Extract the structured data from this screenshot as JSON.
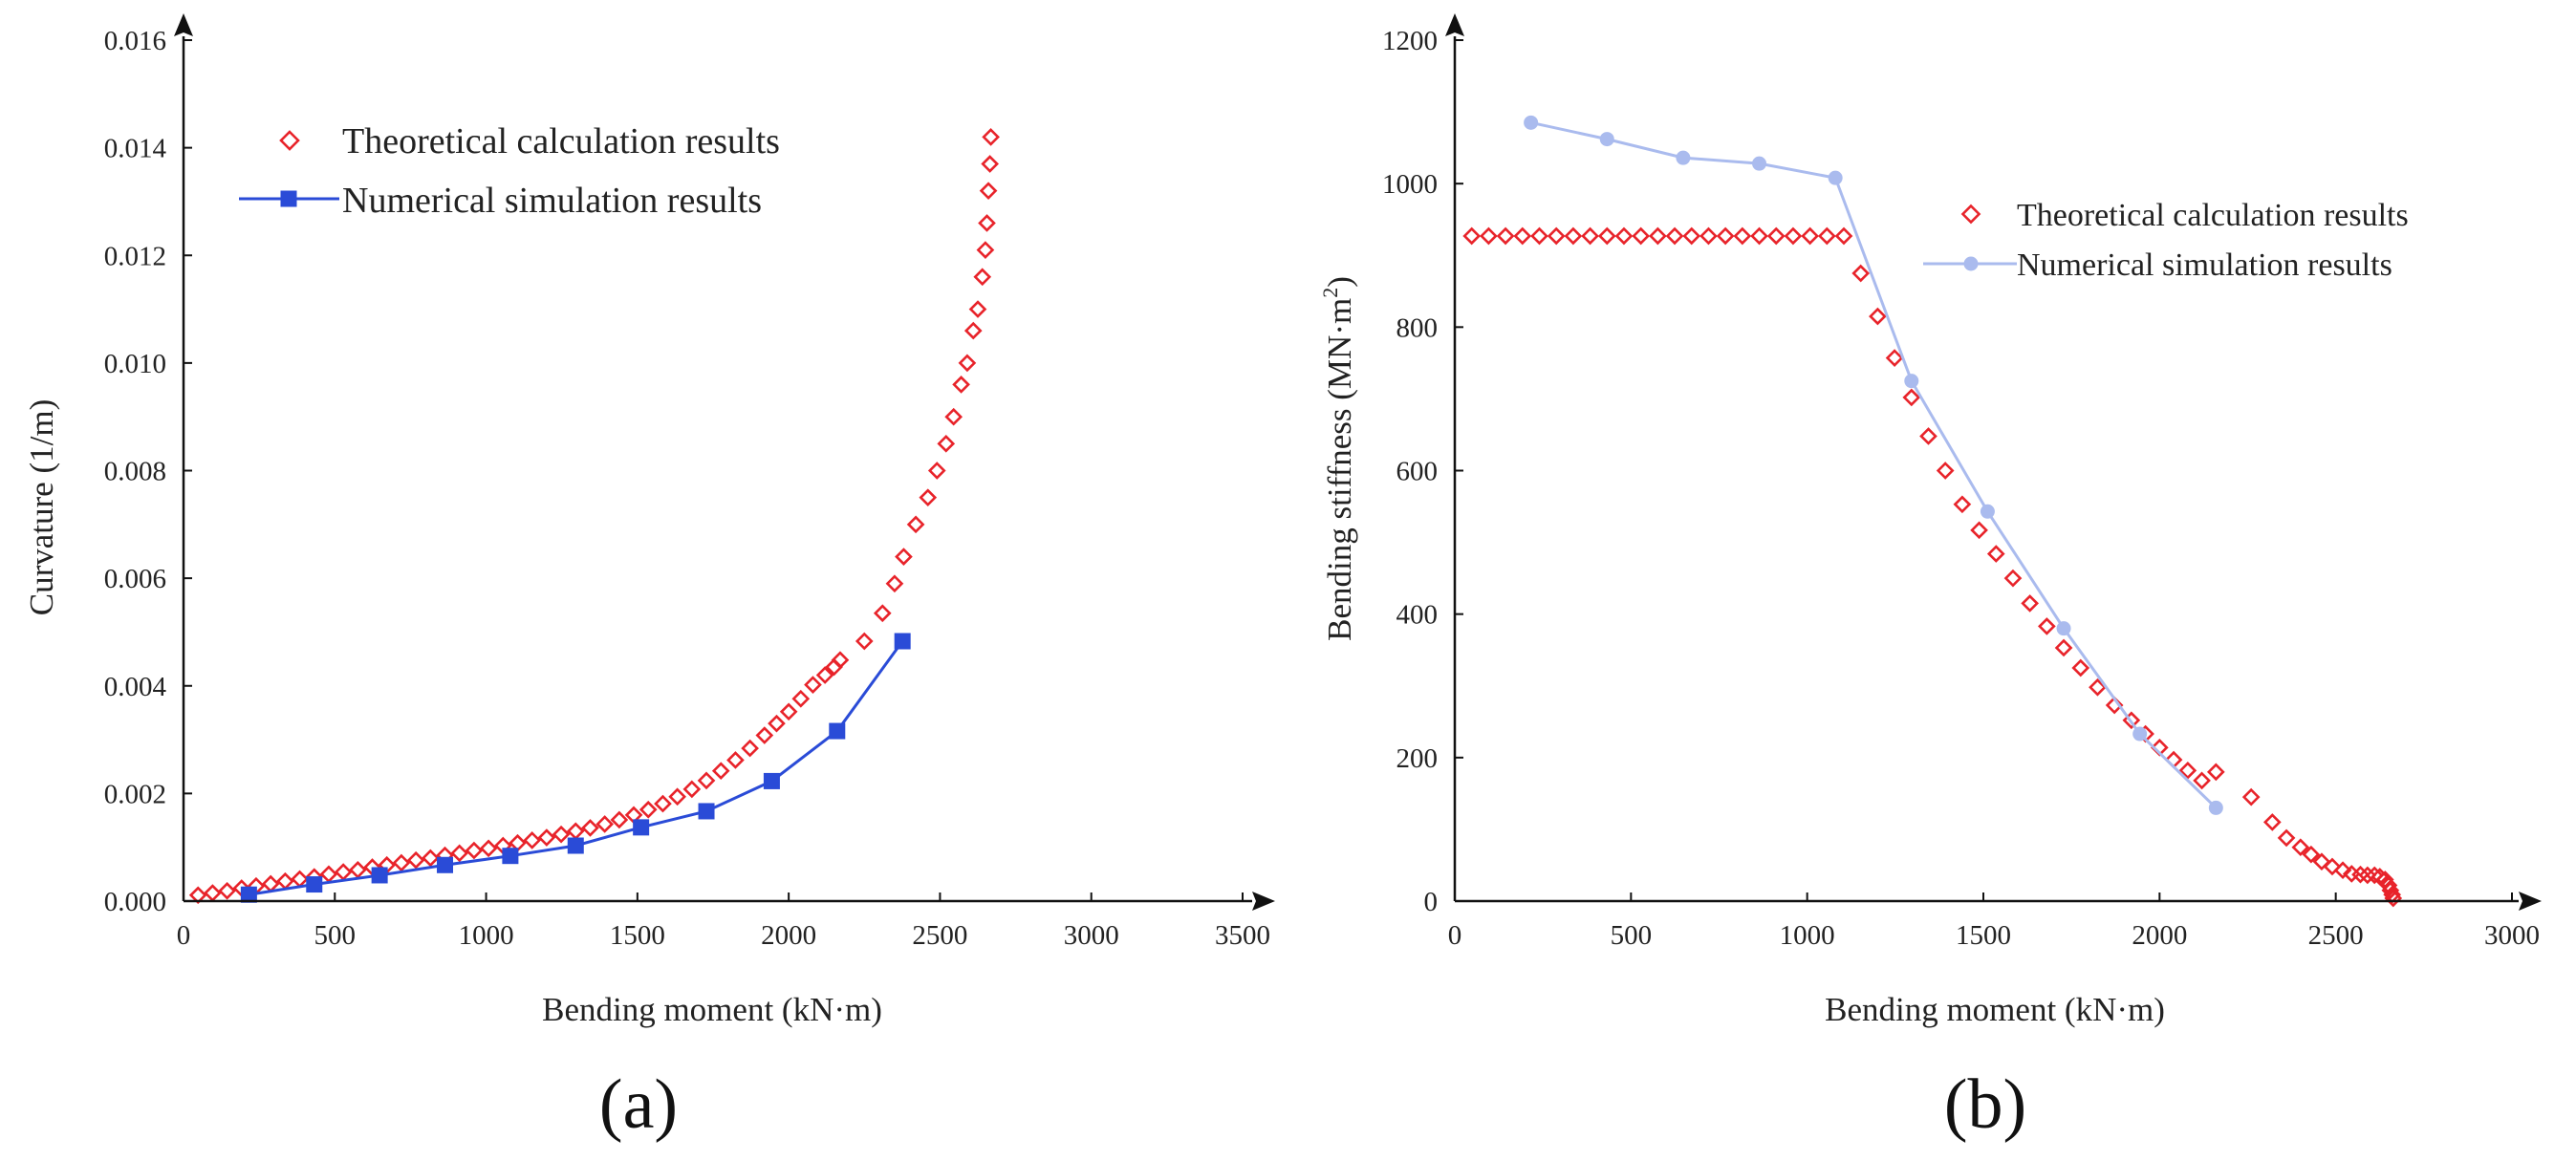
{
  "colors": {
    "theory": "#e8232a",
    "sim_a": "#2a4bd7",
    "sim_b": "#aabbee",
    "axis": "#111111"
  },
  "chart_data": [
    {
      "id": "a",
      "type": "scatter",
      "panel_label": "(a)",
      "xlabel": "Bending moment (kN·m)",
      "ylabel": "Curvature (1/m)",
      "xlim": [
        0,
        3500
      ],
      "ylim": [
        0,
        0.016
      ],
      "xticks": [
        0,
        500,
        1000,
        1500,
        2000,
        2500,
        3000,
        3500
      ],
      "yticks": [
        "0.000",
        "0.002",
        "0.004",
        "0.006",
        "0.008",
        "0.010",
        "0.012",
        "0.014",
        "0.016"
      ],
      "legend_position": "top-left",
      "series": [
        {
          "name": "Theoretical calculation results",
          "marker": "diamond",
          "line": false,
          "x": [
            48,
            96,
            144,
            192,
            240,
            288,
            336,
            384,
            432,
            480,
            528,
            576,
            624,
            672,
            720,
            768,
            816,
            864,
            912,
            960,
            1008,
            1056,
            1104,
            1152,
            1200,
            1248,
            1296,
            1344,
            1392,
            1440,
            1488,
            1536,
            1584,
            1632,
            1680,
            1728,
            1776,
            1824,
            1872,
            1920,
            1960,
            2000,
            2040,
            2080,
            2120,
            2150,
            2170,
            2250,
            2310,
            2350,
            2380,
            2420,
            2460,
            2490,
            2520,
            2545,
            2570,
            2590,
            2610,
            2625,
            2640,
            2650,
            2655,
            2660,
            2665,
            2668
          ],
          "y": [
            0.00011,
            0.00015,
            0.00019,
            0.00024,
            0.00028,
            0.00032,
            0.00037,
            0.00041,
            0.00045,
            0.0005,
            0.00054,
            0.00058,
            0.00063,
            0.00067,
            0.00071,
            0.00076,
            0.0008,
            0.00085,
            0.00089,
            0.00094,
            0.00098,
            0.00103,
            0.00108,
            0.00113,
            0.00118,
            0.00124,
            0.0013,
            0.00136,
            0.00143,
            0.00151,
            0.0016,
            0.0017,
            0.00181,
            0.00194,
            0.00208,
            0.00224,
            0.00242,
            0.00262,
            0.00284,
            0.00308,
            0.0033,
            0.00352,
            0.00376,
            0.00402,
            0.0042,
            0.00435,
            0.00448,
            0.00483,
            0.00535,
            0.0059,
            0.0064,
            0.007,
            0.0075,
            0.008,
            0.0085,
            0.009,
            0.0096,
            0.01,
            0.0106,
            0.011,
            0.0116,
            0.0121,
            0.0126,
            0.0132,
            0.0137,
            0.0142
          ]
        },
        {
          "name": "Numerical simulation results",
          "marker": "square",
          "line": true,
          "x": [
            216,
            432,
            648,
            864,
            1080,
            1296,
            1512,
            1728,
            1944,
            2160,
            2376
          ],
          "y": [
            0.00012,
            0.00031,
            0.00048,
            0.00067,
            0.00084,
            0.00103,
            0.00137,
            0.00167,
            0.00223,
            0.00316,
            0.00483
          ]
        }
      ]
    },
    {
      "id": "b",
      "type": "scatter",
      "panel_label": "(b)",
      "xlabel": "Bending moment (kN·m)",
      "ylabel_main": "Bending stiffness (MN·m",
      "ylabel_sup": "2",
      "ylabel_end": ")",
      "xlim": [
        0,
        3000
      ],
      "ylim": [
        0,
        1200
      ],
      "xticks": [
        0,
        500,
        1000,
        1500,
        2000,
        2500,
        3000
      ],
      "yticks": [
        0,
        200,
        400,
        600,
        800,
        1000,
        1200
      ],
      "legend_position": "top-right",
      "series": [
        {
          "name": "Theoretical calculation results",
          "marker": "diamond",
          "line": false,
          "x": [
            48,
            96,
            144,
            192,
            240,
            288,
            336,
            384,
            432,
            480,
            528,
            576,
            624,
            672,
            720,
            768,
            816,
            864,
            912,
            960,
            1008,
            1056,
            1104,
            1152,
            1200,
            1248,
            1296,
            1344,
            1392,
            1440,
            1488,
            1536,
            1584,
            1632,
            1680,
            1728,
            1776,
            1824,
            1872,
            1920,
            1960,
            2000,
            2040,
            2080,
            2120,
            2160,
            2260,
            2320,
            2360,
            2400,
            2430,
            2460,
            2490,
            2520,
            2545,
            2570,
            2590,
            2610,
            2625,
            2640,
            2650,
            2655,
            2660,
            2663
          ],
          "y": [
            927,
            927,
            927,
            927,
            927,
            927,
            927,
            927,
            927,
            927,
            927,
            927,
            927,
            927,
            927,
            927,
            927,
            927,
            927,
            927,
            927,
            927,
            927,
            875,
            815,
            757,
            702,
            648,
            600,
            553,
            517,
            484,
            450,
            415,
            383,
            353,
            325,
            298,
            273,
            252,
            233,
            214,
            197,
            182,
            168,
            180,
            145,
            110,
            88,
            75,
            65,
            55,
            48,
            43,
            38,
            37,
            36,
            36,
            34,
            30,
            22,
            15,
            9,
            4
          ]
        },
        {
          "name": "Numerical simulation results",
          "marker": "circle",
          "line": true,
          "x": [
            216,
            432,
            648,
            864,
            1080,
            1296,
            1512,
            1728,
            1944,
            2160
          ],
          "y": [
            1085,
            1062,
            1036,
            1028,
            1008,
            725,
            543,
            380,
            233,
            130
          ]
        }
      ]
    }
  ]
}
